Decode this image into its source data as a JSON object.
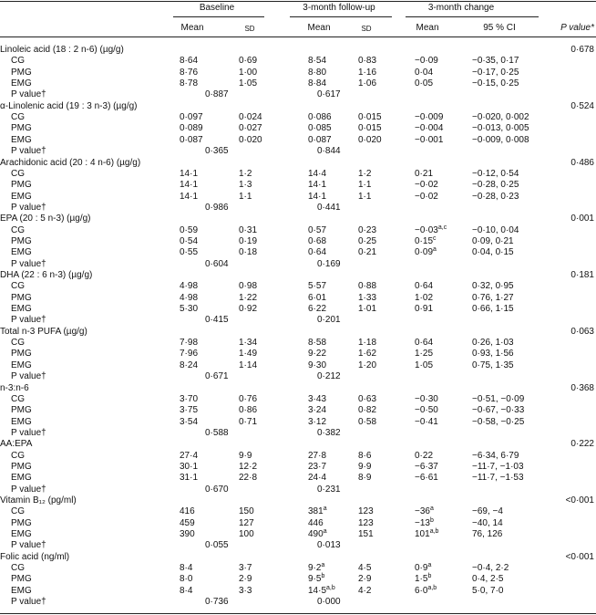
{
  "header": {
    "groups": [
      "Baseline",
      "3-month follow-up",
      "3-month change"
    ],
    "sub": [
      "Mean",
      "SD",
      "Mean",
      "SD",
      "Mean",
      "95 % CI"
    ],
    "p_value": "P value*"
  },
  "sections": [
    {
      "title": "Linoleic acid (18 : 2 n-6) (µg/g)",
      "p": "0·678",
      "rows": [
        {
          "group": "CG",
          "cells": [
            "8·64",
            "0·69",
            "8·54",
            "0·83",
            "−0·09",
            "−0·35, 0·17"
          ]
        },
        {
          "group": "PMG",
          "cells": [
            "8·76",
            "1·00",
            "8·80",
            "1·16",
            "0·04",
            "−0·17, 0·25"
          ]
        },
        {
          "group": "EMG",
          "cells": [
            "8·78",
            "1·05",
            "8·84",
            "1·06",
            "0·05",
            "−0·15, 0·25"
          ]
        }
      ],
      "p_label": "P value†",
      "p_values": [
        "0·887",
        "0·617"
      ]
    },
    {
      "title": "α-Linolenic acid (19 : 3 n-3) (µg/g)",
      "p": "0·524",
      "rows": [
        {
          "group": "CG",
          "cells": [
            "0·097",
            "0·024",
            "0·086",
            "0·015",
            "−0·009",
            "−0·020, 0·002"
          ]
        },
        {
          "group": "PMG",
          "cells": [
            "0·089",
            "0·027",
            "0·085",
            "0·015",
            "−0·004",
            "−0·013, 0·005"
          ]
        },
        {
          "group": "EMG",
          "cells": [
            "0·087",
            "0·020",
            "0·087",
            "0·020",
            "−0·001",
            "−0·009, 0·008"
          ]
        }
      ],
      "p_label": "P value†",
      "p_values": [
        "0·365",
        "0·844"
      ]
    },
    {
      "title": "Arachidonic acid (20 : 4 n-6) (µg/g)",
      "p": "0·486",
      "rows": [
        {
          "group": "CG",
          "cells": [
            "14·1",
            "1·2",
            "14·4",
            "1·2",
            "0·21",
            "−0·12, 0·54"
          ]
        },
        {
          "group": "PMG",
          "cells": [
            "14·1",
            "1·3",
            "14·1",
            "1·1",
            "−0·02",
            "−0·28, 0·25"
          ]
        },
        {
          "group": "EMG",
          "cells": [
            "14·1",
            "1·1",
            "14·1",
            "1·1",
            "−0·02",
            "−0·28, 0·23"
          ]
        }
      ],
      "p_label": "P value†",
      "p_values": [
        "0·986",
        "0·441"
      ]
    },
    {
      "title": "EPA (20 : 5 n-3) (µg/g)",
      "p": "0·001",
      "rows": [
        {
          "group": "CG",
          "cells": [
            "0·59",
            "0·31",
            "0·57",
            "0·23",
            {
              "text": "−0·03",
              "sup": "a,c"
            },
            "−0·10, 0·04"
          ]
        },
        {
          "group": "PMG",
          "cells": [
            "0·54",
            "0·19",
            "0·68",
            "0·25",
            {
              "text": "0·15",
              "sup": "c"
            },
            "0·09, 0·21"
          ]
        },
        {
          "group": "EMG",
          "cells": [
            "0·55",
            "0·18",
            "0·64",
            "0·21",
            {
              "text": "0·09",
              "sup": "a"
            },
            "0·04, 0·15"
          ]
        }
      ],
      "p_label": "P value†",
      "p_values": [
        "0·604",
        "0·169"
      ]
    },
    {
      "title": "DHA (22 : 6 n-3) (µg/g)",
      "p": "0·181",
      "rows": [
        {
          "group": "CG",
          "cells": [
            "4·98",
            "0·98",
            "5·57",
            "0·88",
            "0·64",
            "0·32, 0·95"
          ]
        },
        {
          "group": "PMG",
          "cells": [
            "4·98",
            "1·22",
            "6·01",
            "1·33",
            "1·02",
            "0·76, 1·27"
          ]
        },
        {
          "group": "EMG",
          "cells": [
            "5·30",
            "0·92",
            "6·22",
            "1·01",
            "0·91",
            "0·66, 1·15"
          ]
        }
      ],
      "p_label": "P value†",
      "p_values": [
        "0·415",
        "0·201"
      ]
    },
    {
      "title": "Total n-3 PUFA (µg/g)",
      "p": "0·063",
      "rows": [
        {
          "group": "CG",
          "cells": [
            "7·98",
            "1·34",
            "8·58",
            "1·18",
            "0·64",
            "0·26, 1·03"
          ]
        },
        {
          "group": "PMG",
          "cells": [
            "7·96",
            "1·49",
            "9·22",
            "1·62",
            "1·25",
            "0·93, 1·56"
          ]
        },
        {
          "group": "EMG",
          "cells": [
            "8·24",
            "1·14",
            "9·30",
            "1·20",
            "1·05",
            "0·75, 1·35"
          ]
        }
      ],
      "p_label": "P value†",
      "p_values": [
        "0·671",
        "0·212"
      ]
    },
    {
      "title": "n-3:n-6",
      "p": "0·368",
      "rows": [
        {
          "group": "CG",
          "cells": [
            "3·70",
            "0·76",
            "3·43",
            "0·63",
            "−0·30",
            "−0·51, −0·09"
          ]
        },
        {
          "group": "PMG",
          "cells": [
            "3·75",
            "0·86",
            "3·24",
            "0·82",
            "−0·50",
            "−0·67, −0·33"
          ]
        },
        {
          "group": "EMG",
          "cells": [
            "3·54",
            "0·71",
            "3·12",
            "0·58",
            "−0·41",
            "−0·58, −0·25"
          ]
        }
      ],
      "p_label": "P value†",
      "p_values": [
        "0·588",
        "0·382"
      ]
    },
    {
      "title": "AA:EPA",
      "p": "0·222",
      "rows": [
        {
          "group": "CG",
          "cells": [
            "27·4",
            "9·9",
            "27·8",
            "8·6",
            "0·22",
            "−6·34, 6·79"
          ]
        },
        {
          "group": "PMG",
          "cells": [
            "30·1",
            "12·2",
            "23·7",
            "9·9",
            "−6·37",
            "−11·7, −1·03"
          ]
        },
        {
          "group": "EMG",
          "cells": [
            "31·1",
            "22·8",
            "24·4",
            "8·9",
            "−6·61",
            "−11·7, −1·53"
          ]
        }
      ],
      "p_label": "P value†",
      "p_values": [
        "0·670",
        "0·231"
      ]
    },
    {
      "title": "Vitamin B₁₂ (pg/ml)",
      "p": "<0·001",
      "rows": [
        {
          "group": "CG",
          "cells": [
            "416",
            "150",
            {
              "text": "381",
              "sup": "a"
            },
            "123",
            {
              "text": "−36",
              "sup": "a"
            },
            "−69, −4"
          ]
        },
        {
          "group": "PMG",
          "cells": [
            "459",
            "127",
            "446",
            "123",
            {
              "text": "−13",
              "sup": "b"
            },
            "−40, 14"
          ]
        },
        {
          "group": "EMG",
          "cells": [
            "390",
            "100",
            {
              "text": "490",
              "sup": "a"
            },
            "151",
            {
              "text": "101",
              "sup": "a,b"
            },
            "76, 126"
          ]
        }
      ],
      "p_label": "P value†",
      "p_values": [
        "0·055",
        "0·013"
      ]
    },
    {
      "title": "Folic acid (ng/ml)",
      "p": "<0·001",
      "rows": [
        {
          "group": "CG",
          "cells": [
            "8·4",
            "3·7",
            {
              "text": "9·2",
              "sup": "a"
            },
            "4·5",
            {
              "text": "0·9",
              "sup": "a"
            },
            "−0·4, 2·2"
          ]
        },
        {
          "group": "PMG",
          "cells": [
            "8·0",
            "2·9",
            {
              "text": "9·5",
              "sup": "b"
            },
            "2·9",
            {
              "text": "1·5",
              "sup": "b"
            },
            "0·4, 2·5"
          ]
        },
        {
          "group": "EMG",
          "cells": [
            "8·4",
            "3·3",
            {
              "text": "14·5",
              "sup": "a,b"
            },
            "4·2",
            {
              "text": "6·0",
              "sup": "a,b"
            },
            "5·0, 7·0"
          ]
        }
      ],
      "p_label": "P value†",
      "p_values": [
        "0·736",
        "0·000"
      ]
    }
  ]
}
